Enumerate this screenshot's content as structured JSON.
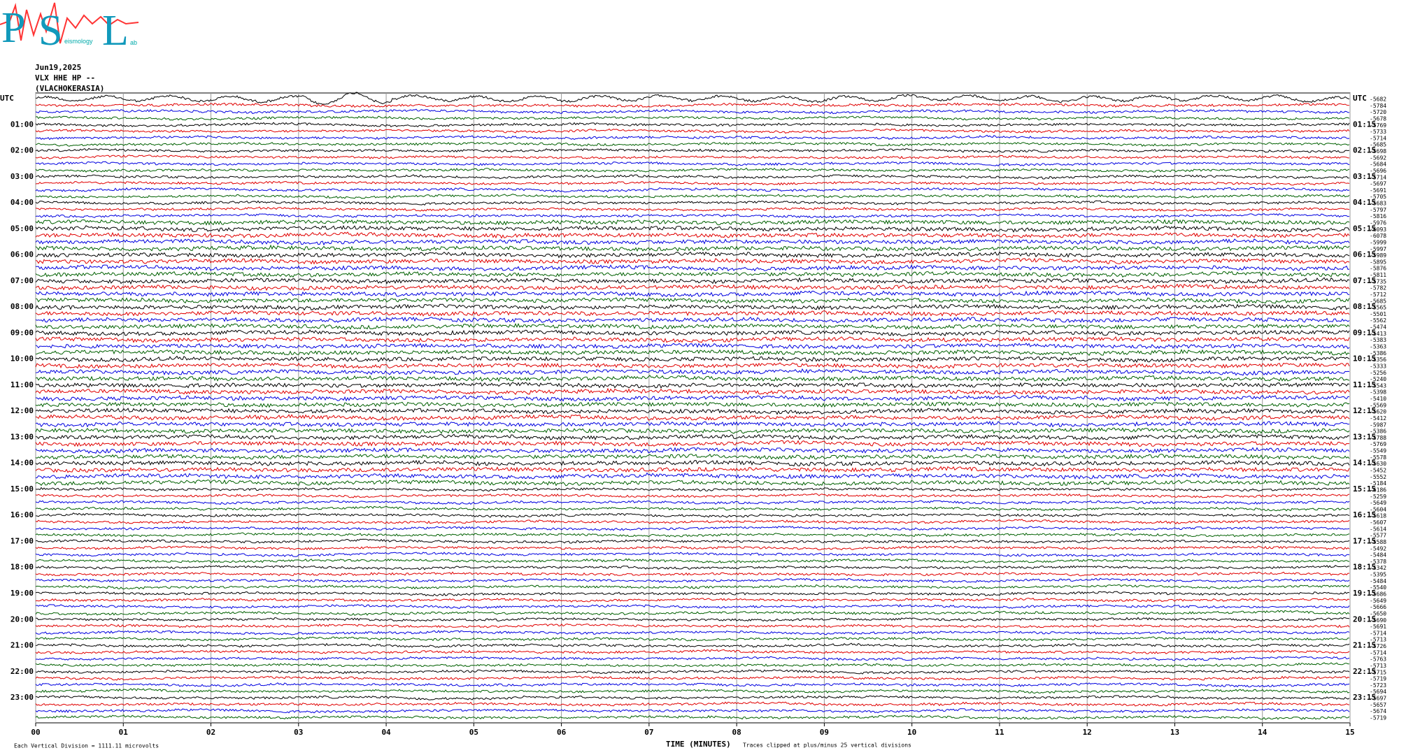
{
  "chart_data": {
    "type": "helicorder",
    "logo": {
      "letters": [
        "P",
        "S",
        "L"
      ],
      "words": [
        "eismology",
        "ab"
      ]
    },
    "date": "Jun19,2025",
    "station": "VLX HHE HP --",
    "site": "(VLACHOKERASIA)",
    "left_labels": [
      "UTC",
      "01:00",
      "02:00",
      "03:00",
      "04:00",
      "05:00",
      "06:00",
      "07:00",
      "08:00",
      "09:00",
      "10:00",
      "11:00",
      "12:00",
      "13:00",
      "14:00",
      "15:00",
      "16:00",
      "17:00",
      "18:00",
      "19:00",
      "20:00",
      "21:00",
      "22:00",
      "23:00"
    ],
    "right_labels": [
      "UTC",
      "01:15",
      "02:15",
      "03:15",
      "04:15",
      "05:15",
      "06:15",
      "07:15",
      "08:15",
      "09:15",
      "10:15",
      "11:15",
      "12:15",
      "13:15",
      "14:15",
      "15:15",
      "16:15",
      "17:15",
      "18:15",
      "19:15",
      "20:15",
      "21:15",
      "22:15",
      "23:15"
    ],
    "trace_labels": [
      -5682,
      -5784,
      -5720,
      -5678,
      -5769,
      -5733,
      -5714,
      -5685,
      -5698,
      -5692,
      -5684,
      -5696,
      -5714,
      -5697,
      -5691,
      -5705,
      -5683,
      -5797,
      -5816,
      -5976,
      -6093,
      -6078,
      -5999,
      -5997,
      -5989,
      -5895,
      -5876,
      -5811,
      -5735,
      -5782,
      -5712,
      -5685,
      -5565,
      -5501,
      -5562,
      -5474,
      -5413,
      -5383,
      -5363,
      -5386,
      -5356,
      -5333,
      -5256,
      -5240,
      -5543,
      -5398,
      -5410,
      -5569,
      -5620,
      -5412,
      -5987,
      -5386,
      -5788,
      -5769,
      -5549,
      -5578,
      -5630,
      -5452,
      -5552,
      -5184,
      -6186,
      -5259,
      -5649,
      -5604,
      -5618,
      -5607,
      -5614,
      -5577,
      -5588,
      -5492,
      -5484,
      -5378,
      -5342,
      -5395,
      -5484,
      -5540,
      -5686,
      -5649,
      -5666,
      -5650,
      -5690,
      -5691,
      -5714,
      -5713,
      -5726,
      -5714,
      -5763,
      -5713,
      -5715,
      -5719,
      -5723,
      -5694,
      -5697,
      -5657,
      -5674,
      -5719
    ],
    "colors": [
      "#000000",
      "#e00000",
      "#0000e0",
      "#006000"
    ],
    "xlim": [
      0,
      15
    ],
    "xticks": [
      {
        "value": 0,
        "label": "00"
      },
      {
        "value": 1,
        "label": "01"
      },
      {
        "value": 2,
        "label": "02"
      },
      {
        "value": 3,
        "label": "03"
      },
      {
        "value": 4,
        "label": "04"
      },
      {
        "value": 5,
        "label": "05"
      },
      {
        "value": 6,
        "label": "06"
      },
      {
        "value": 7,
        "label": "07"
      },
      {
        "value": 8,
        "label": "08"
      },
      {
        "value": 9,
        "label": "09"
      },
      {
        "value": 10,
        "label": "10"
      },
      {
        "value": 11,
        "label": "11"
      },
      {
        "value": 12,
        "label": "12"
      },
      {
        "value": 13,
        "label": "13"
      },
      {
        "value": 14,
        "label": "14"
      },
      {
        "value": 15,
        "label": "15"
      }
    ],
    "grid": true,
    "scale_note": "Each Vertical Division = 1111.11 microvolts",
    "xlabel": "TIME (MINUTES)",
    "clip_note": "Traces clipped at plus/minus 25 vertical divisions"
  }
}
